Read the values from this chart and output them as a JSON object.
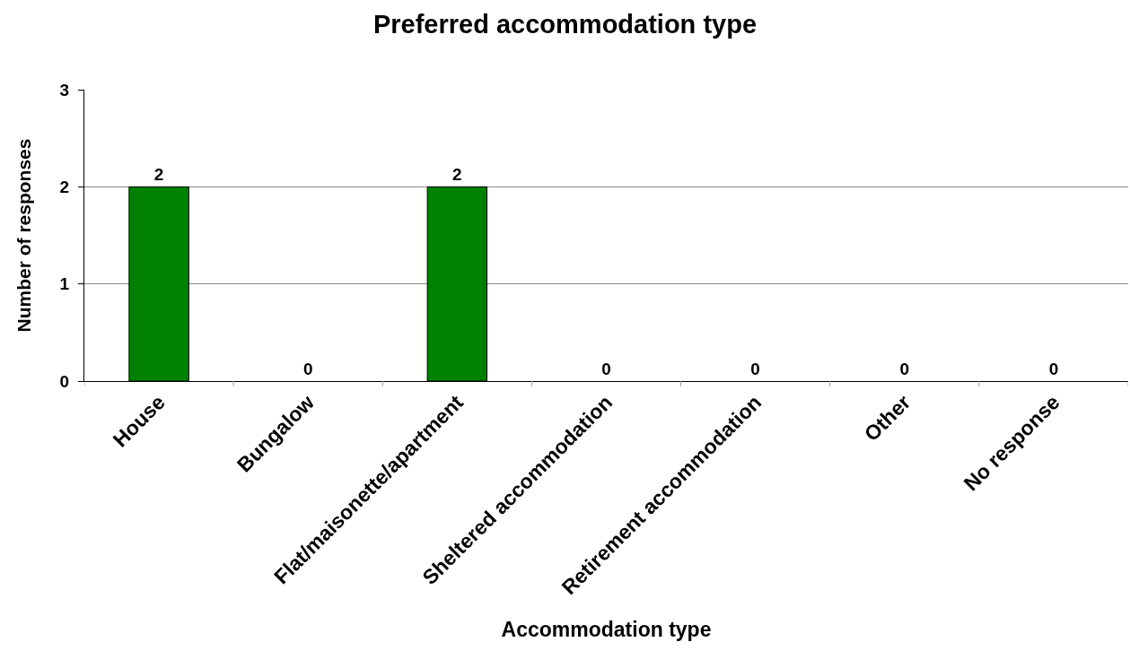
{
  "chart_data": {
    "type": "bar",
    "title": "Preferred accommodation type",
    "xlabel": "Accommodation type",
    "ylabel": "Number of responses",
    "categories": [
      "House",
      "Bungalow",
      "Flat/maisonette/apartment",
      "Sheltered accommodation",
      "Retirement accommodation",
      "Other",
      "No response"
    ],
    "values": [
      2,
      0,
      2,
      0,
      0,
      0,
      0
    ],
    "color": "#008000",
    "ylim": [
      0,
      3
    ],
    "yticks": [
      0,
      1,
      2,
      3
    ],
    "grid": "y",
    "data_labels": true
  }
}
